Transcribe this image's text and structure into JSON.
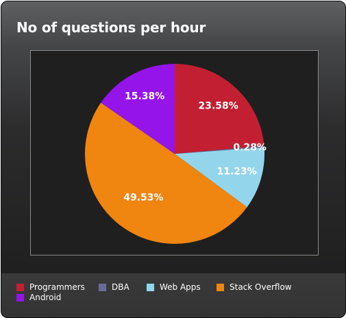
{
  "chart_data": {
    "type": "pie",
    "title": "No of questions per hour",
    "series": [
      {
        "name": "Programmers",
        "value": 23.58,
        "label": "23.58%",
        "color": "#c22032"
      },
      {
        "name": "DBA",
        "value": 0.28,
        "label": "0.28%",
        "color": "#6a6a9a"
      },
      {
        "name": "Web Apps",
        "value": 11.23,
        "label": "11.23%",
        "color": "#93d6ec"
      },
      {
        "name": "Stack Overflow",
        "value": 49.53,
        "label": "49.53%",
        "color": "#f0850f"
      },
      {
        "name": "Android",
        "value": 15.38,
        "label": "15.38%",
        "color": "#9414ea"
      }
    ],
    "legend_position": "bottom"
  }
}
